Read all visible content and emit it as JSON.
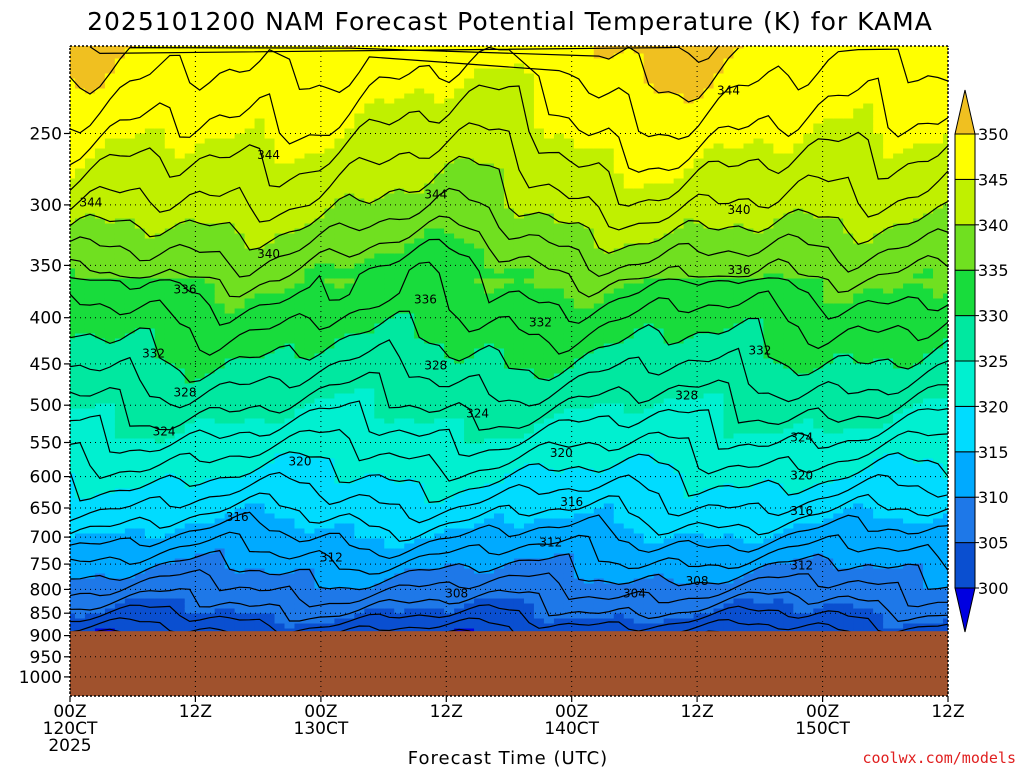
{
  "chart_data": {
    "type": "contour",
    "title": "2025101200 NAM Forecast Potential Temperature (K) for KAMA",
    "xlabel": "Forecast Time (UTC)",
    "ylabel": "",
    "credit": "coolwx.com/models",
    "y_axis": {
      "scale": "log-pressure",
      "reversed": true,
      "range": [
        1050,
        200
      ],
      "ticks": [
        250,
        300,
        350,
        400,
        450,
        500,
        550,
        600,
        650,
        700,
        750,
        800,
        850,
        900,
        950,
        1000
      ]
    },
    "x_axis": {
      "range_hours": [
        0,
        84
      ],
      "ticks": [
        {
          "hour": 0,
          "lines": [
            "00Z",
            "120CT",
            "2025"
          ]
        },
        {
          "hour": 12,
          "lines": [
            "12Z"
          ]
        },
        {
          "hour": 24,
          "lines": [
            "00Z",
            "130CT"
          ]
        },
        {
          "hour": 36,
          "lines": [
            "12Z"
          ]
        },
        {
          "hour": 48,
          "lines": [
            "00Z",
            "140CT"
          ]
        },
        {
          "hour": 60,
          "lines": [
            "12Z"
          ]
        },
        {
          "hour": 72,
          "lines": [
            "00Z",
            "150CT"
          ]
        },
        {
          "hour": 84,
          "lines": [
            "12Z"
          ]
        }
      ]
    },
    "grid": true,
    "surface_pressure_hPa": 890,
    "colorbar": {
      "levels": [
        300,
        305,
        310,
        315,
        320,
        325,
        330,
        335,
        340,
        345,
        350
      ],
      "colors": [
        "#0000e0",
        "#0a4fd0",
        "#1e78e8",
        "#00aaff",
        "#00dcff",
        "#00f0d0",
        "#00e8a0",
        "#18dc3c",
        "#70e020",
        "#c0f000",
        "#ffff00",
        "#f0c020"
      ],
      "extend": "both"
    },
    "theta_profile": {
      "pressure_hPa": [
        890,
        850,
        800,
        750,
        700,
        650,
        600,
        550,
        500,
        450,
        400,
        350,
        300,
        250,
        200
      ],
      "theta_K": [
        302,
        305,
        308,
        311,
        314,
        317,
        320,
        323,
        326,
        329,
        332,
        336,
        341,
        345,
        349
      ]
    },
    "contour_labels": [
      {
        "value": 344,
        "hour": 2,
        "p": 298
      },
      {
        "value": 344,
        "hour": 19,
        "p": 264
      },
      {
        "value": 344,
        "hour": 35,
        "p": 292
      },
      {
        "value": 344,
        "hour": 63,
        "p": 224
      },
      {
        "value": 340,
        "hour": 19,
        "p": 340
      },
      {
        "value": 340,
        "hour": 64,
        "p": 304
      },
      {
        "value": 336,
        "hour": 11,
        "p": 372
      },
      {
        "value": 336,
        "hour": 34,
        "p": 382
      },
      {
        "value": 336,
        "hour": 64,
        "p": 354
      },
      {
        "value": 332,
        "hour": 8,
        "p": 438
      },
      {
        "value": 332,
        "hour": 45,
        "p": 405
      },
      {
        "value": 332,
        "hour": 66,
        "p": 435
      },
      {
        "value": 328,
        "hour": 11,
        "p": 484
      },
      {
        "value": 328,
        "hour": 35,
        "p": 452
      },
      {
        "value": 328,
        "hour": 59,
        "p": 488
      },
      {
        "value": 324,
        "hour": 9,
        "p": 535
      },
      {
        "value": 324,
        "hour": 39,
        "p": 511
      },
      {
        "value": 324,
        "hour": 70,
        "p": 543
      },
      {
        "value": 320,
        "hour": 22,
        "p": 577
      },
      {
        "value": 320,
        "hour": 47,
        "p": 565
      },
      {
        "value": 320,
        "hour": 70,
        "p": 598
      },
      {
        "value": 316,
        "hour": 16,
        "p": 665
      },
      {
        "value": 316,
        "hour": 48,
        "p": 640
      },
      {
        "value": 316,
        "hour": 70,
        "p": 655
      },
      {
        "value": 312,
        "hour": 25,
        "p": 737
      },
      {
        "value": 312,
        "hour": 46,
        "p": 710
      },
      {
        "value": 312,
        "hour": 70,
        "p": 753
      },
      {
        "value": 308,
        "hour": 37,
        "p": 808
      },
      {
        "value": 308,
        "hour": 60,
        "p": 783
      },
      {
        "value": 304,
        "hour": 54,
        "p": 808
      }
    ]
  }
}
